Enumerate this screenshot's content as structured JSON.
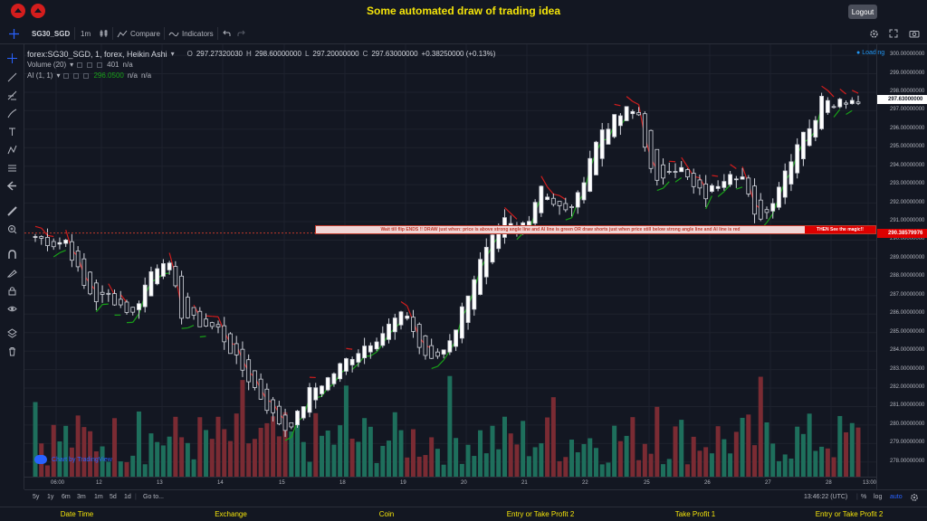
{
  "app": {
    "title": "Some automated draw of trading idea",
    "logout_label": "Logout"
  },
  "toolbar": {
    "symbol": "SG30_SGD",
    "interval": "1m",
    "compare_label": "Compare",
    "indicators_label": "Indicators"
  },
  "legend": {
    "title": "forex:SG30_SGD, 1, forex, Heikin Ashi",
    "open_key": "O",
    "open": "297.27320030",
    "high_key": "H",
    "high": "298.60000000",
    "low_key": "L",
    "low": "297.20000000",
    "close_key": "C",
    "close": "297.63000000",
    "change": "+0.38250000 (+0.13%)",
    "volume_label": "Volume (20)",
    "volume_value": "401",
    "volume_na": "n/a",
    "ai_label": "AI (1, 1)",
    "ai_value": "296.0500",
    "ai_na1": "n/a",
    "ai_na2": "n/a",
    "loading": "Loading"
  },
  "price_scale": {
    "ticks": [
      "300.00000000",
      "299.00000000",
      "298.00000000",
      "297.00000000",
      "296.00000000",
      "295.00000000",
      "294.00000000",
      "293.00000000",
      "292.00000000",
      "291.00000000",
      "290.00000000",
      "289.00000000",
      "288.00000000",
      "287.00000000",
      "286.00000000",
      "285.00000000",
      "284.00000000",
      "283.00000000",
      "282.00000000",
      "281.00000000",
      "280.00000000",
      "279.00000000",
      "278.00000000"
    ],
    "current_price_tag": "297.63000000",
    "line_price_tag": "290.38579976"
  },
  "time_scale": {
    "labels": [
      "06:00",
      "12",
      "13",
      "14",
      "15",
      "18",
      "19",
      "20",
      "21",
      "22",
      "25",
      "26",
      "27",
      "28",
      "13:00"
    ]
  },
  "bottom_bar": {
    "ranges": [
      "5y",
      "1y",
      "6m",
      "3m",
      "1m",
      "5d",
      "1d"
    ],
    "goto_label": "Go to...",
    "clock": "13:46:22 (UTC)",
    "pct": "%",
    "log": "log",
    "auto": "auto"
  },
  "annotation": {
    "text": "Wait till flip ENDS !!   DRAW just when:  price is above strong angle line and AI line is green        OR         draw shorts just when price still below strong angle line and AI line is red",
    "cta": "THEN See the magic!!"
  },
  "watermark": "Chart by TradingView",
  "footer": {
    "items": [
      "Date Time",
      "Exchange",
      "Coin",
      "Entry or Take Profit 2",
      "Take Profit 1",
      "Entry or Take Profit 2"
    ]
  },
  "colors": {
    "accent": "#f5e50a",
    "up": "#26a69a",
    "down": "#ef5350",
    "ai_green": "#18a018",
    "ai_red": "#d11d1d"
  },
  "chart_data": {
    "type": "candlestick",
    "style": "Heikin Ashi",
    "x_labels": [
      "06:00",
      "12",
      "13",
      "14",
      "15",
      "18",
      "19",
      "20",
      "21",
      "22",
      "25",
      "26",
      "27",
      "28",
      "13:00"
    ],
    "ylim": [
      277.5,
      300.2
    ],
    "close_path": [
      [
        0,
        290.2
      ],
      [
        3,
        289.8
      ],
      [
        5,
        290.0
      ],
      [
        8,
        287.5
      ],
      [
        10,
        286.8
      ],
      [
        12,
        287.0
      ],
      [
        14,
        286.5
      ],
      [
        16,
        286.0
      ],
      [
        19,
        288.3
      ],
      [
        21,
        289.0
      ],
      [
        22,
        288.5
      ],
      [
        24,
        286.0
      ],
      [
        27,
        285.5
      ],
      [
        30,
        285.2
      ],
      [
        33,
        283.5
      ],
      [
        36,
        282.0
      ],
      [
        39,
        280.5
      ],
      [
        41,
        279.8
      ],
      [
        43,
        280.5
      ],
      [
        45,
        281.8
      ],
      [
        48,
        282.5
      ],
      [
        51,
        283.5
      ],
      [
        54,
        284.3
      ],
      [
        57,
        285.0
      ],
      [
        59,
        285.7
      ],
      [
        61,
        286.0
      ],
      [
        63,
        284.2
      ],
      [
        65,
        283.4
      ],
      [
        67,
        284.1
      ],
      [
        69,
        285.3
      ],
      [
        71,
        287.2
      ],
      [
        73,
        288.8
      ],
      [
        75,
        290.0
      ],
      [
        77,
        291.0
      ],
      [
        79,
        290.5
      ],
      [
        81,
        291.3
      ],
      [
        83,
        293.0
      ],
      [
        85,
        292.0
      ],
      [
        87,
        291.5
      ],
      [
        89,
        292.3
      ],
      [
        91,
        294.5
      ],
      [
        93,
        296.0
      ],
      [
        95,
        296.5
      ],
      [
        97,
        297.0
      ],
      [
        99,
        296.8
      ],
      [
        101,
        293.7
      ],
      [
        102,
        293.0
      ],
      [
        104,
        294.0
      ],
      [
        106,
        293.8
      ],
      [
        108,
        292.8
      ],
      [
        110,
        292.4
      ],
      [
        112,
        293.1
      ],
      [
        114,
        293.8
      ],
      [
        116,
        293.4
      ],
      [
        118,
        291.2
      ],
      [
        120,
        291.5
      ],
      [
        122,
        293.0
      ],
      [
        124,
        294.5
      ],
      [
        126,
        296.0
      ],
      [
        128,
        296.3
      ],
      [
        129,
        298.0
      ],
      [
        131,
        297.5
      ],
      [
        133,
        297.6
      ],
      [
        135,
        297.63
      ]
    ],
    "volume_range": [
      0,
      401
    ],
    "annotation_line_price": 290.38579976
  }
}
